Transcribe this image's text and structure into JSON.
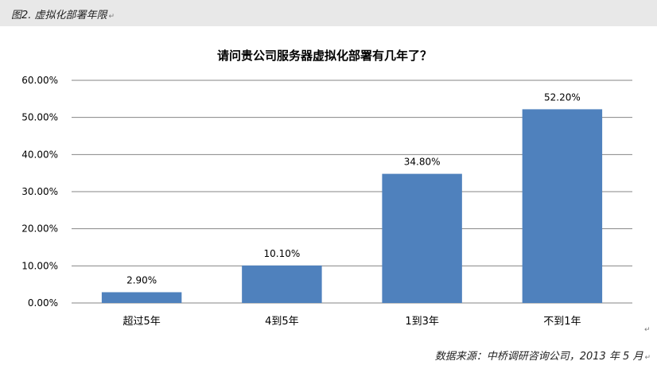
{
  "caption": {
    "text": "图2. 虚拟化部署年限",
    "paragraph_mark": "↵"
  },
  "source": {
    "text": "数据来源：中桥调研咨询公司，2013 年 5 月",
    "paragraph_mark": "↵"
  },
  "end_mark": "↵",
  "colors": {
    "bar": "#4f81bd",
    "grid": "#868686",
    "text": "#000000",
    "caption_bg": "#e8e8e8"
  },
  "chart_data": {
    "type": "bar",
    "title": "请问贵公司服务器虚拟化部署有几年了？",
    "categories": [
      "超过5年",
      "4到5年",
      "1到3年",
      "不到1年"
    ],
    "values": [
      2.9,
      10.1,
      34.8,
      52.2
    ],
    "data_labels": [
      "2.90%",
      "10.10%",
      "34.80%",
      "52.20%"
    ],
    "y_ticks": [
      "0.00%",
      "10.00%",
      "20.00%",
      "30.00%",
      "40.00%",
      "50.00%",
      "60.00%"
    ],
    "ylim": [
      0,
      60
    ],
    "xlabel": "",
    "ylabel": "",
    "grid": true,
    "legend": "none"
  }
}
